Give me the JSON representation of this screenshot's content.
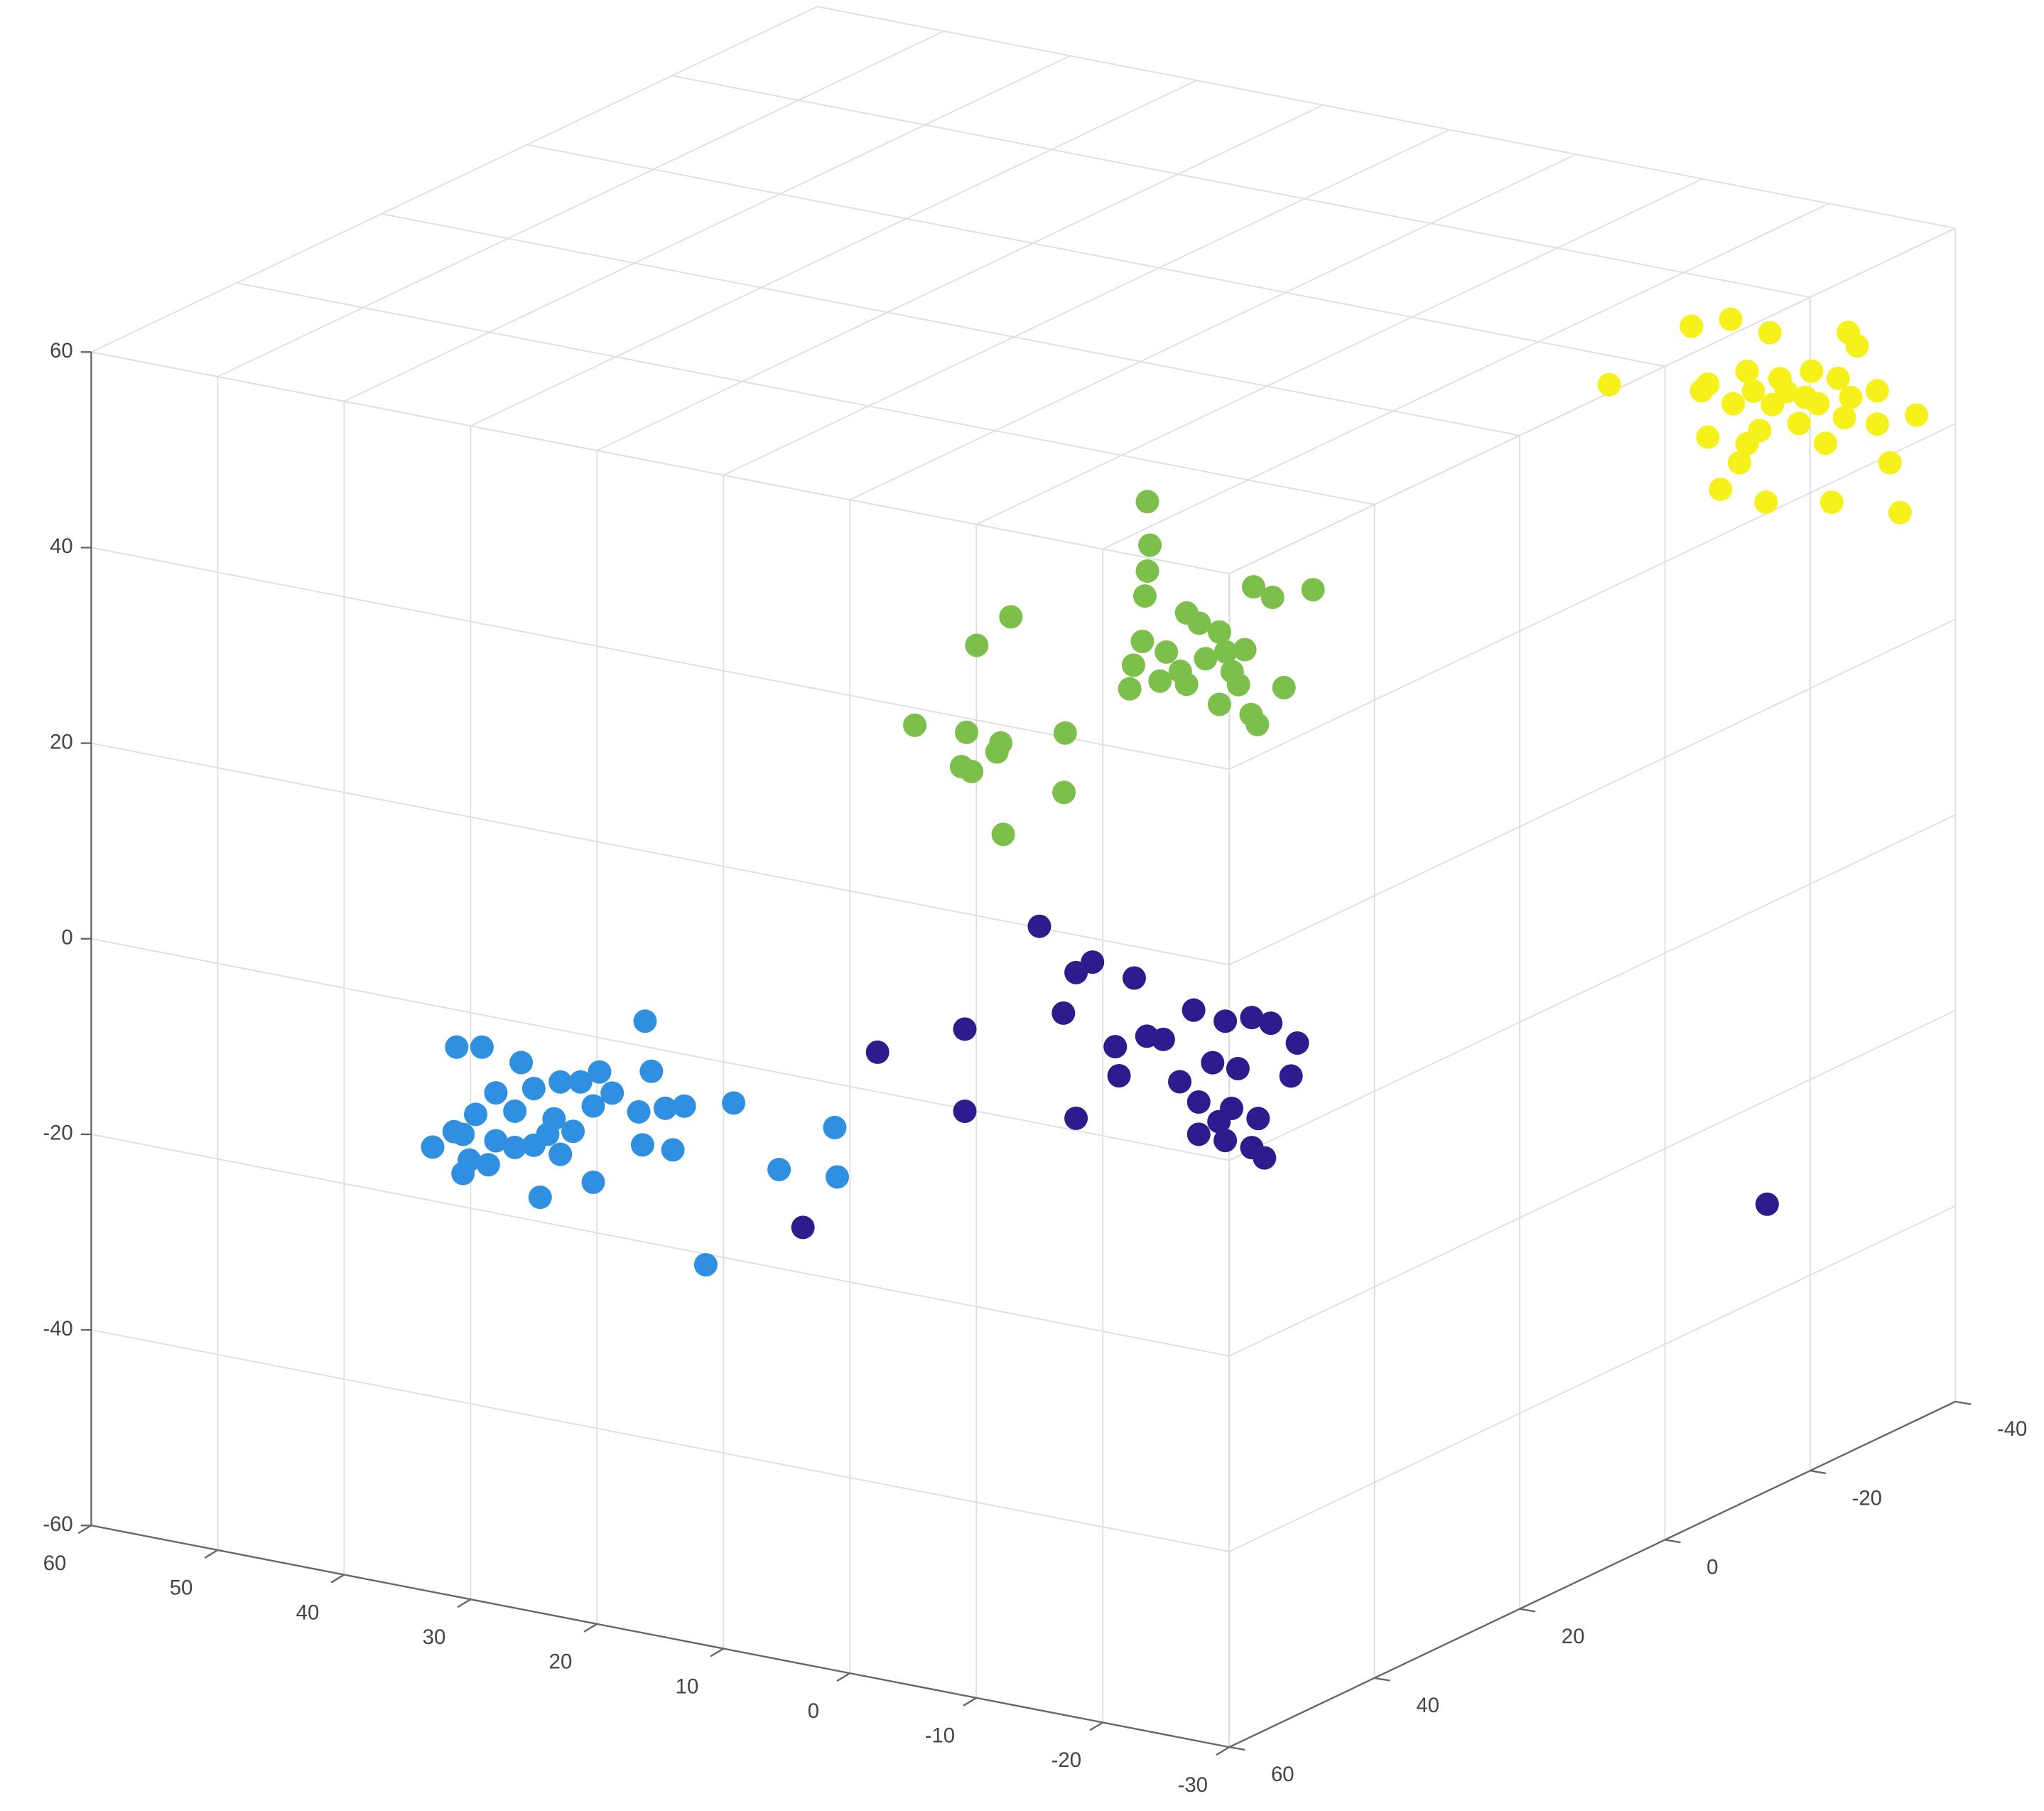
{
  "chart_data": {
    "type": "scatter3d",
    "xlim": [
      -30,
      60
    ],
    "ylim": [
      -40,
      60
    ],
    "zlim": [
      -60,
      60
    ],
    "xticks": [
      60,
      50,
      40,
      30,
      20,
      10,
      0,
      -10,
      -20,
      -30
    ],
    "yticks": [
      60,
      40,
      20,
      0,
      -20,
      -40
    ],
    "zticks": [
      -60,
      -40,
      -20,
      0,
      20,
      40,
      60
    ],
    "grid": true,
    "series": [
      {
        "color": "#2f8fe0",
        "x": [
          16.2,
          31.1,
          29.1,
          26.0,
          22.9,
          19.8,
          15.7,
          21.3,
          28.0,
          25.0,
          18.8,
          13.1,
          9.2,
          29.6,
          26.5,
          23.4,
          20.3,
          16.7,
          14.6,
          30.6,
          28.0,
          25.0,
          21.9,
          33.0,
          30.1,
          26.5,
          22.9,
          16.4,
          14.0,
          1.2,
          30.6,
          28.6,
          20.3,
          5.6,
          1.0,
          24.5,
          11.4,
          31.3,
          23.9
        ],
        "y": [
          60,
          60,
          60,
          60,
          60,
          60,
          60,
          60,
          60,
          60,
          60,
          60,
          60,
          60,
          60,
          60,
          60,
          60,
          60,
          60,
          60,
          60,
          60,
          60,
          60,
          60,
          60,
          60,
          60,
          60,
          60,
          60,
          60,
          60,
          60,
          60,
          60,
          60,
          60
        ],
        "z": [
          2.6,
          -3.8,
          -3.3,
          -4.1,
          -5.3,
          -3.5,
          -2.4,
          -4.9,
          -7.7,
          -6.5,
          -5.4,
          -5.3,
          -4.0,
          -10.3,
          -9.2,
          -9.2,
          -7.1,
          -6.8,
          -5.9,
          -12.6,
          -12.6,
          -12.3,
          -10.1,
          -14.5,
          -15.1,
          -12.9,
          -12.7,
          -10.1,
          -10.0,
          -4.5,
          -16.6,
          -15.2,
          -14.9,
          -9.9,
          -9.5,
          -17.5,
          -21.1,
          -12.5,
          -10.9
        ]
      },
      {
        "color": "#2e1b8e",
        "x": [
          -3.5,
          -6.4,
          -7.7,
          -11.0,
          -5.4,
          -15.7,
          2.4,
          9.3,
          -9.5,
          -12.0,
          -13.3,
          -18.2,
          -20.3,
          -21.8,
          -23.9,
          -9.8,
          -14.6,
          -17.2,
          -19.2,
          -23.4,
          2.4,
          -6.4,
          -16.1,
          -18.7,
          -20.8,
          -16.1,
          -18.2,
          -20.3,
          -21.3,
          -17.7,
          -26.6,
          15.2
        ],
        "y": [
          40,
          40,
          40,
          40,
          40,
          40,
          40,
          40,
          40,
          40,
          40,
          40,
          40,
          40,
          40,
          40,
          40,
          40,
          40,
          40,
          40,
          40,
          40,
          40,
          40,
          40,
          40,
          40,
          40,
          40,
          -20,
          40
        ],
        "z": [
          10.2,
          6.2,
          7.6,
          6.8,
          1.8,
          4.7,
          -1.8,
          -5.9,
          -0.6,
          1.1,
          1.1,
          4.2,
          5.1,
          4.9,
          3.4,
          -3.5,
          -2.9,
          -0.3,
          -0.4,
          -0.1,
          -10.2,
          -8.7,
          -4.6,
          -4.6,
          -5.1,
          -7.9,
          -8.0,
          -8.2,
          -9.0,
          -6.2,
          -33.6,
          -25.3
        ]
      },
      {
        "color": "#7cc04b",
        "x": [
          -6.3,
          -6.5,
          -6.3,
          -6.1,
          -14.7,
          -19.4,
          -16.2,
          4.5,
          7.2,
          -9.4,
          -10.4,
          -12.0,
          -5.9,
          -7.8,
          -14.0,
          -5.2,
          -8.9,
          -10.9,
          -13.0,
          -17.1,
          -4.9,
          -7.3,
          -13.5,
          -12.0,
          -14.5,
          -15.0,
          12.1,
          8.0,
          5.3,
          5.6,
          0.2,
          8.4,
          7.6,
          0.3,
          5.1,
          -9.4,
          -12.5
        ],
        "y": [
          30,
          30,
          30,
          30,
          30,
          30,
          30,
          30,
          30,
          30,
          30,
          30,
          30,
          30,
          30,
          30,
          30,
          30,
          30,
          30,
          30,
          30,
          30,
          30,
          30,
          30,
          30,
          30,
          30,
          30,
          30,
          30,
          30,
          30,
          30,
          30,
          30
        ],
        "z": [
          50.8,
          46.4,
          43.7,
          41.1,
          44.2,
          45.1,
          43.5,
          36.3,
          32.7,
          40.2,
          39.4,
          38.9,
          36.4,
          35.8,
          37.6,
          33.8,
          34.1,
          35.9,
          35.1,
          34.5,
          31.3,
          32.7,
          33.9,
          31.5,
          31.1,
          30.2,
          23.3,
          23.6,
          23.2,
          22.2,
          25.5,
          20.0,
          19.7,
          19.4,
          13.9,
          32.9,
          37.0
        ]
      },
      {
        "color": "#f6f01b",
        "x": [
          -12.0,
          -15.1,
          -18.2,
          -24.4,
          -25.1,
          -5.5,
          -13.3,
          -16.4,
          -19.0,
          -21.5,
          -23.6,
          -26.7,
          -29.8,
          -15.3,
          -18.4,
          -21.0,
          -24.1,
          -17.4,
          -20.5,
          -26.7,
          -13.3,
          -16.4,
          -22.6,
          -27.7,
          -15.8,
          -14.3,
          -17.9,
          -23.1,
          -28.5,
          -19.5,
          -22.0,
          -24.6,
          -12.8,
          -16.9
        ],
        "y": [
          -35,
          -35,
          -35,
          -35,
          -35,
          -35,
          -35,
          -35,
          -35,
          -35,
          -35,
          -35,
          -35,
          -35,
          -35,
          -35,
          -35,
          -35,
          -35,
          -35,
          -35,
          -35,
          -35,
          -35,
          -35,
          -35,
          -35,
          -35,
          -35,
          -35,
          -35,
          -35,
          -35,
          -35
        ],
        "z": [
          47.2,
          48.7,
          48.1,
          49.7,
          48.5,
          39.6,
          41.6,
          43.7,
          43.6,
          45.0,
          44.8,
          44.3,
          42.6,
          40.1,
          40.8,
          42.2,
          40.9,
          37.9,
          39.4,
          40.9,
          36.2,
          36.3,
          37.9,
          37.2,
          34.2,
          31.1,
          30.7,
          32.0,
          32.3,
          42.4,
          41.8,
          43.1,
          40.8,
          41.8
        ]
      }
    ]
  }
}
